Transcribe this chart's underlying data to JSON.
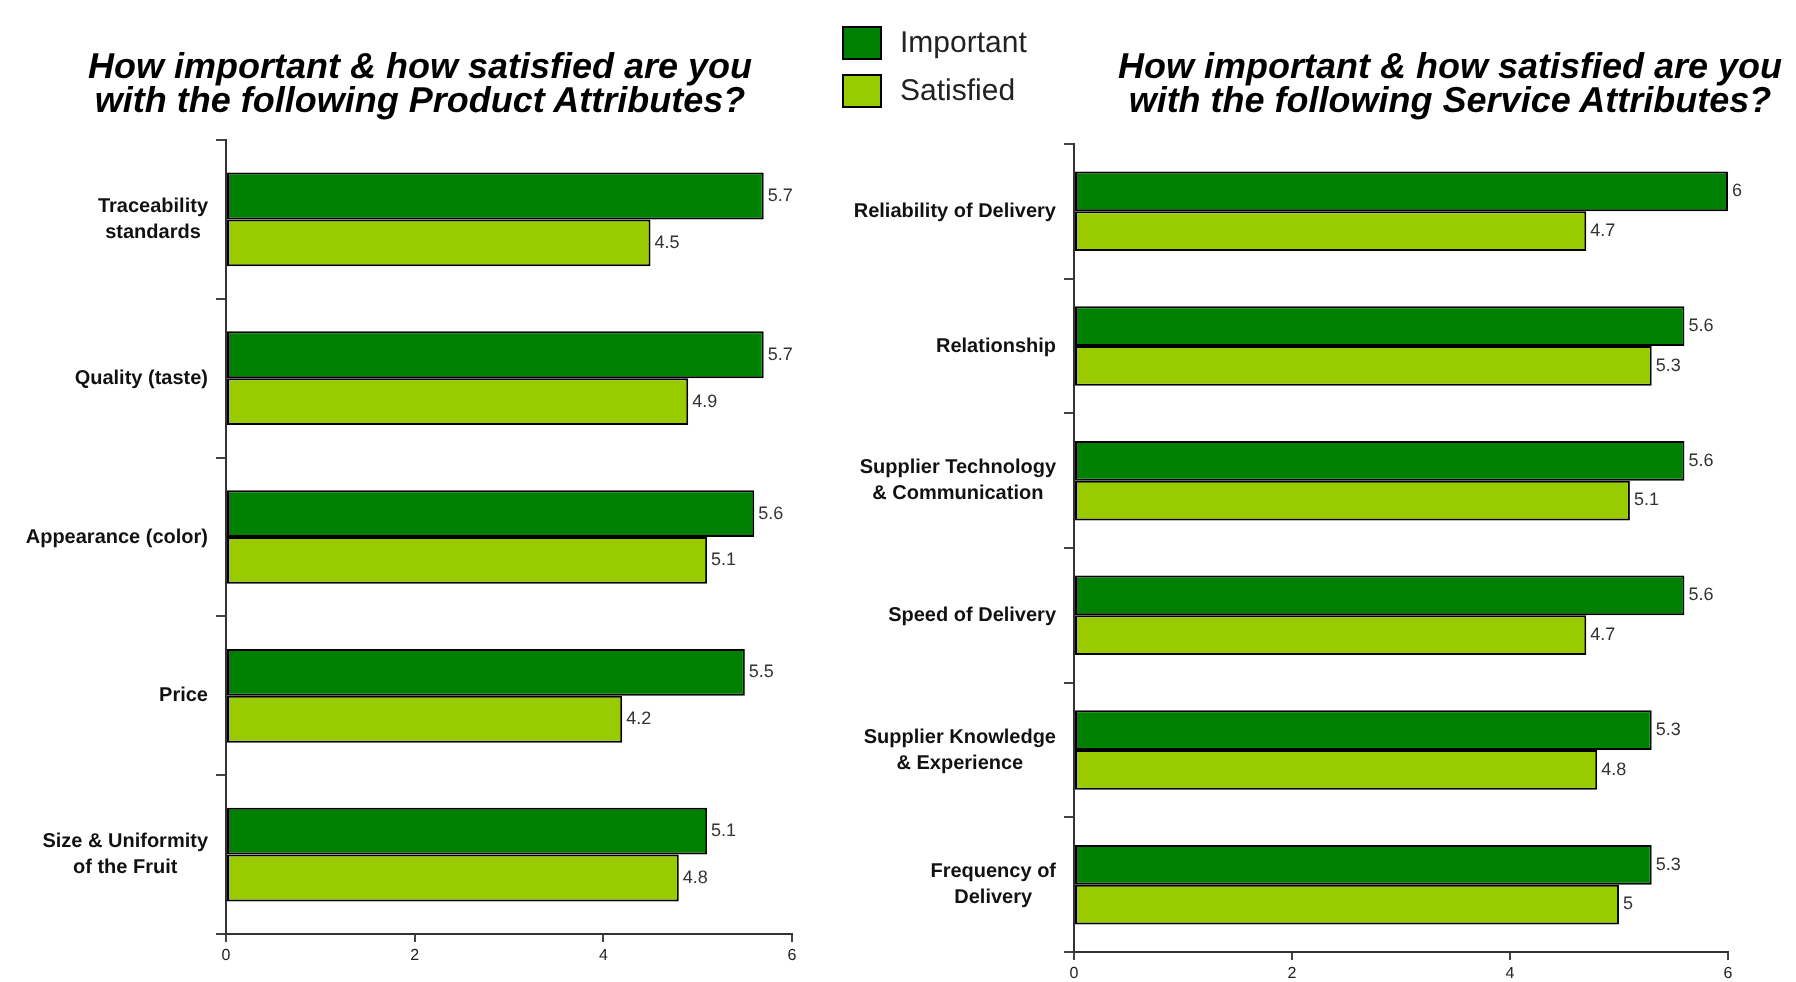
{
  "chart_data": [
    {
      "type": "bar",
      "orientation": "horizontal",
      "title": "How important & how satisfied are you\nwith the following Product Attributes?",
      "categories": [
        "Traceability\nstandards",
        "Quality (taste)",
        "Appearance (color)",
        "Price",
        "Size & Uniformity\nof the Fruit"
      ],
      "series": [
        {
          "name": "Important",
          "color": "#008000",
          "values": [
            5.7,
            5.7,
            5.6,
            5.5,
            5.1
          ]
        },
        {
          "name": "Satisfied",
          "color": "#99cc00",
          "values": [
            4.5,
            4.9,
            5.1,
            4.2,
            4.8
          ]
        }
      ],
      "xlim": [
        0,
        6
      ],
      "xticks": [
        0,
        2,
        4,
        6
      ],
      "data_labels": true,
      "legend": "top right"
    },
    {
      "type": "bar",
      "orientation": "horizontal",
      "title": "How important & how satisfied are you\nwith the following Service Attributes?",
      "categories": [
        "Reliability of Delivery",
        "Relationship",
        "Supplier Technology\n& Communication",
        "Speed of Delivery",
        "Supplier Knowledge\n& Experience",
        "Frequency of\nDelivery"
      ],
      "series": [
        {
          "color": "#008000",
          "values": [
            6,
            5.6,
            5.6,
            5.6,
            5.3,
            5.3
          ]
        },
        {
          "color": "#99cc00",
          "values": [
            4.7,
            5.3,
            5.1,
            4.7,
            4.8,
            5
          ]
        }
      ],
      "xlim": [
        0,
        6
      ],
      "xticks": [
        0,
        2,
        4,
        6
      ],
      "data_labels": true
    }
  ]
}
